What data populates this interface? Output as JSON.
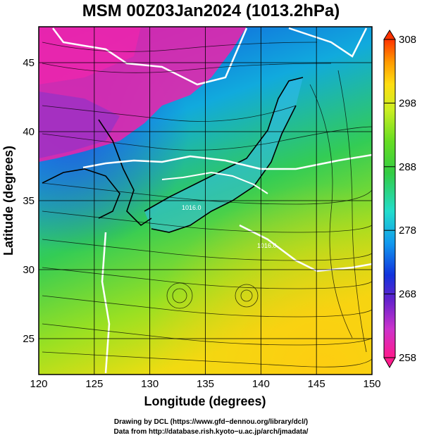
{
  "title": "MSM 00Z03Jan2024 (1013.2hPa)",
  "xlabel": "Longitude (degrees)",
  "ylabel": "Latitude  (degrees)",
  "lon_ticks": [
    "120",
    "125",
    "130",
    "135",
    "140",
    "145",
    "150"
  ],
  "lat_ticks": [
    "25",
    "30",
    "35",
    "40",
    "45"
  ],
  "lon_range": [
    120,
    150
  ],
  "lat_range": [
    22.4,
    47.6
  ],
  "colorbar": {
    "ticks": [
      "308",
      "298",
      "288",
      "278",
      "268",
      "258"
    ],
    "range": [
      258,
      308
    ],
    "colors": [
      "#ff1a8c",
      "#cc33cc",
      "#6622cc",
      "#1133dd",
      "#1199ee",
      "#22ddcc",
      "#33cc44",
      "#66dd22",
      "#ccee22",
      "#ffdd11",
      "#ff9900",
      "#ff3300"
    ]
  },
  "contour_labels": [
    "1016.0",
    "1016.0"
  ],
  "footer": {
    "line1": "Drawing by DCL (https://www.gfd−dennou.org/library/dcl/)",
    "line2": "Data from http://database.rish.kyoto−u.ac.jp/arch/jmadata/"
  }
}
